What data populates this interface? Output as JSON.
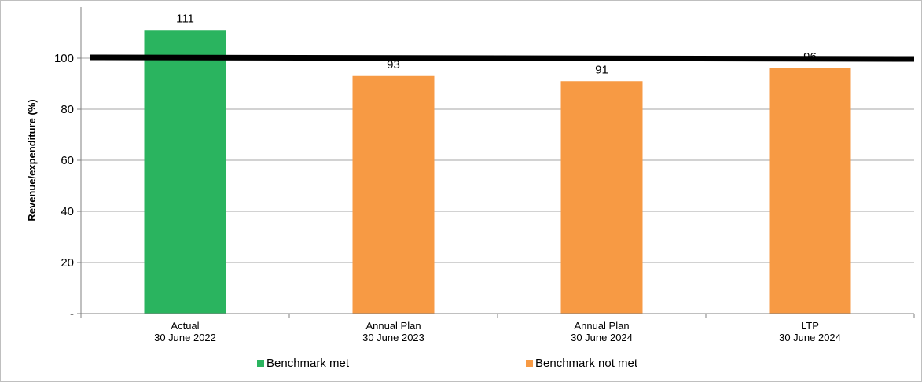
{
  "chart_data": {
    "type": "bar",
    "categories": [
      [
        "Actual",
        "30 June 2022"
      ],
      [
        "Annual Plan",
        "30 June 2023"
      ],
      [
        "Annual Plan",
        "30 June 2024"
      ],
      [
        "LTP",
        "30 June 2024"
      ]
    ],
    "values": [
      111,
      93,
      91,
      96
    ],
    "value_labels": [
      "111",
      "93",
      "91",
      "96"
    ],
    "bar_status": [
      "met",
      "not_met",
      "not_met",
      "not_met"
    ],
    "benchmark": 100,
    "xlabel": "",
    "ylabel": "Revenue/expenditure (%)",
    "ylim": [
      0,
      120
    ],
    "yticks": [
      0,
      20,
      40,
      60,
      80,
      100
    ],
    "ytick_labels": [
      "-",
      "20",
      "40",
      "60",
      "80",
      "100"
    ],
    "grid": true,
    "legend_position": "bottom",
    "legend": [
      {
        "key": "met",
        "label": "Benchmark met",
        "color": "#2ab45f"
      },
      {
        "key": "not_met",
        "label": "Benchmark not met",
        "color": "#f79a44"
      }
    ],
    "colors": {
      "met": "#2ab45f",
      "not_met": "#f79a44",
      "benchmark_line": "#000000",
      "grid": "#a6a6a6"
    }
  }
}
